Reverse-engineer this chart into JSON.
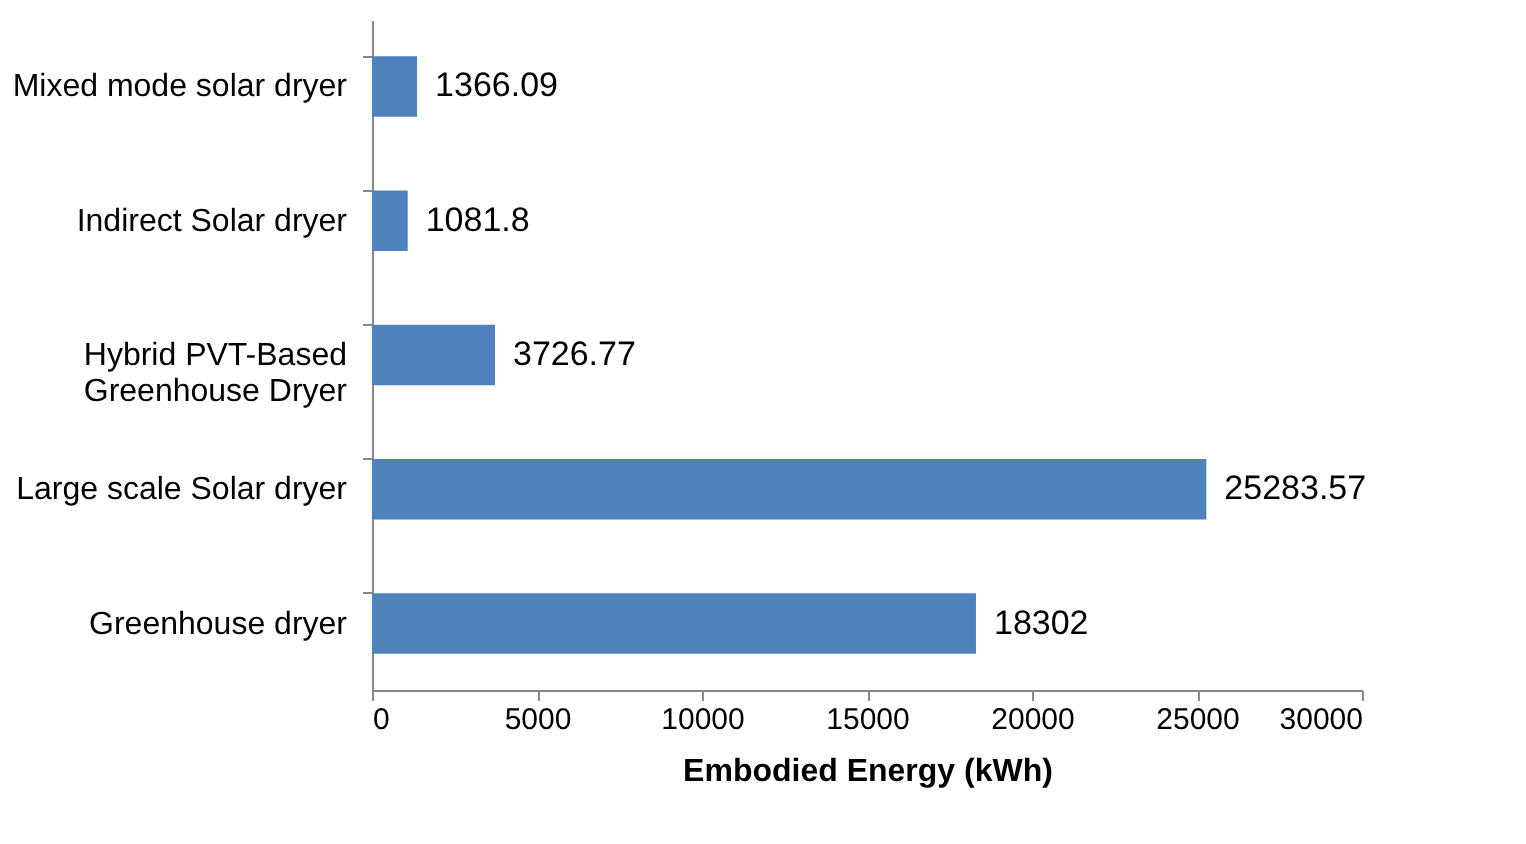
{
  "chart_data": {
    "type": "bar",
    "orientation": "horizontal",
    "xlabel": "Embodied Energy (kWh)",
    "categories": [
      "Mixed mode solar dryer",
      "Indirect Solar dryer",
      "Hybrid PVT-Based\nGreenhouse Dryer",
      "Large scale Solar dryer",
      "Greenhouse dryer"
    ],
    "values": [
      1366.09,
      1081.8,
      3726.77,
      25283.57,
      18302
    ],
    "color": "#4f81bd",
    "xlim": [
      0,
      30000
    ],
    "xticks": [
      0,
      5000,
      10000,
      15000,
      20000,
      25000,
      30000
    ],
    "data_labels": true
  }
}
